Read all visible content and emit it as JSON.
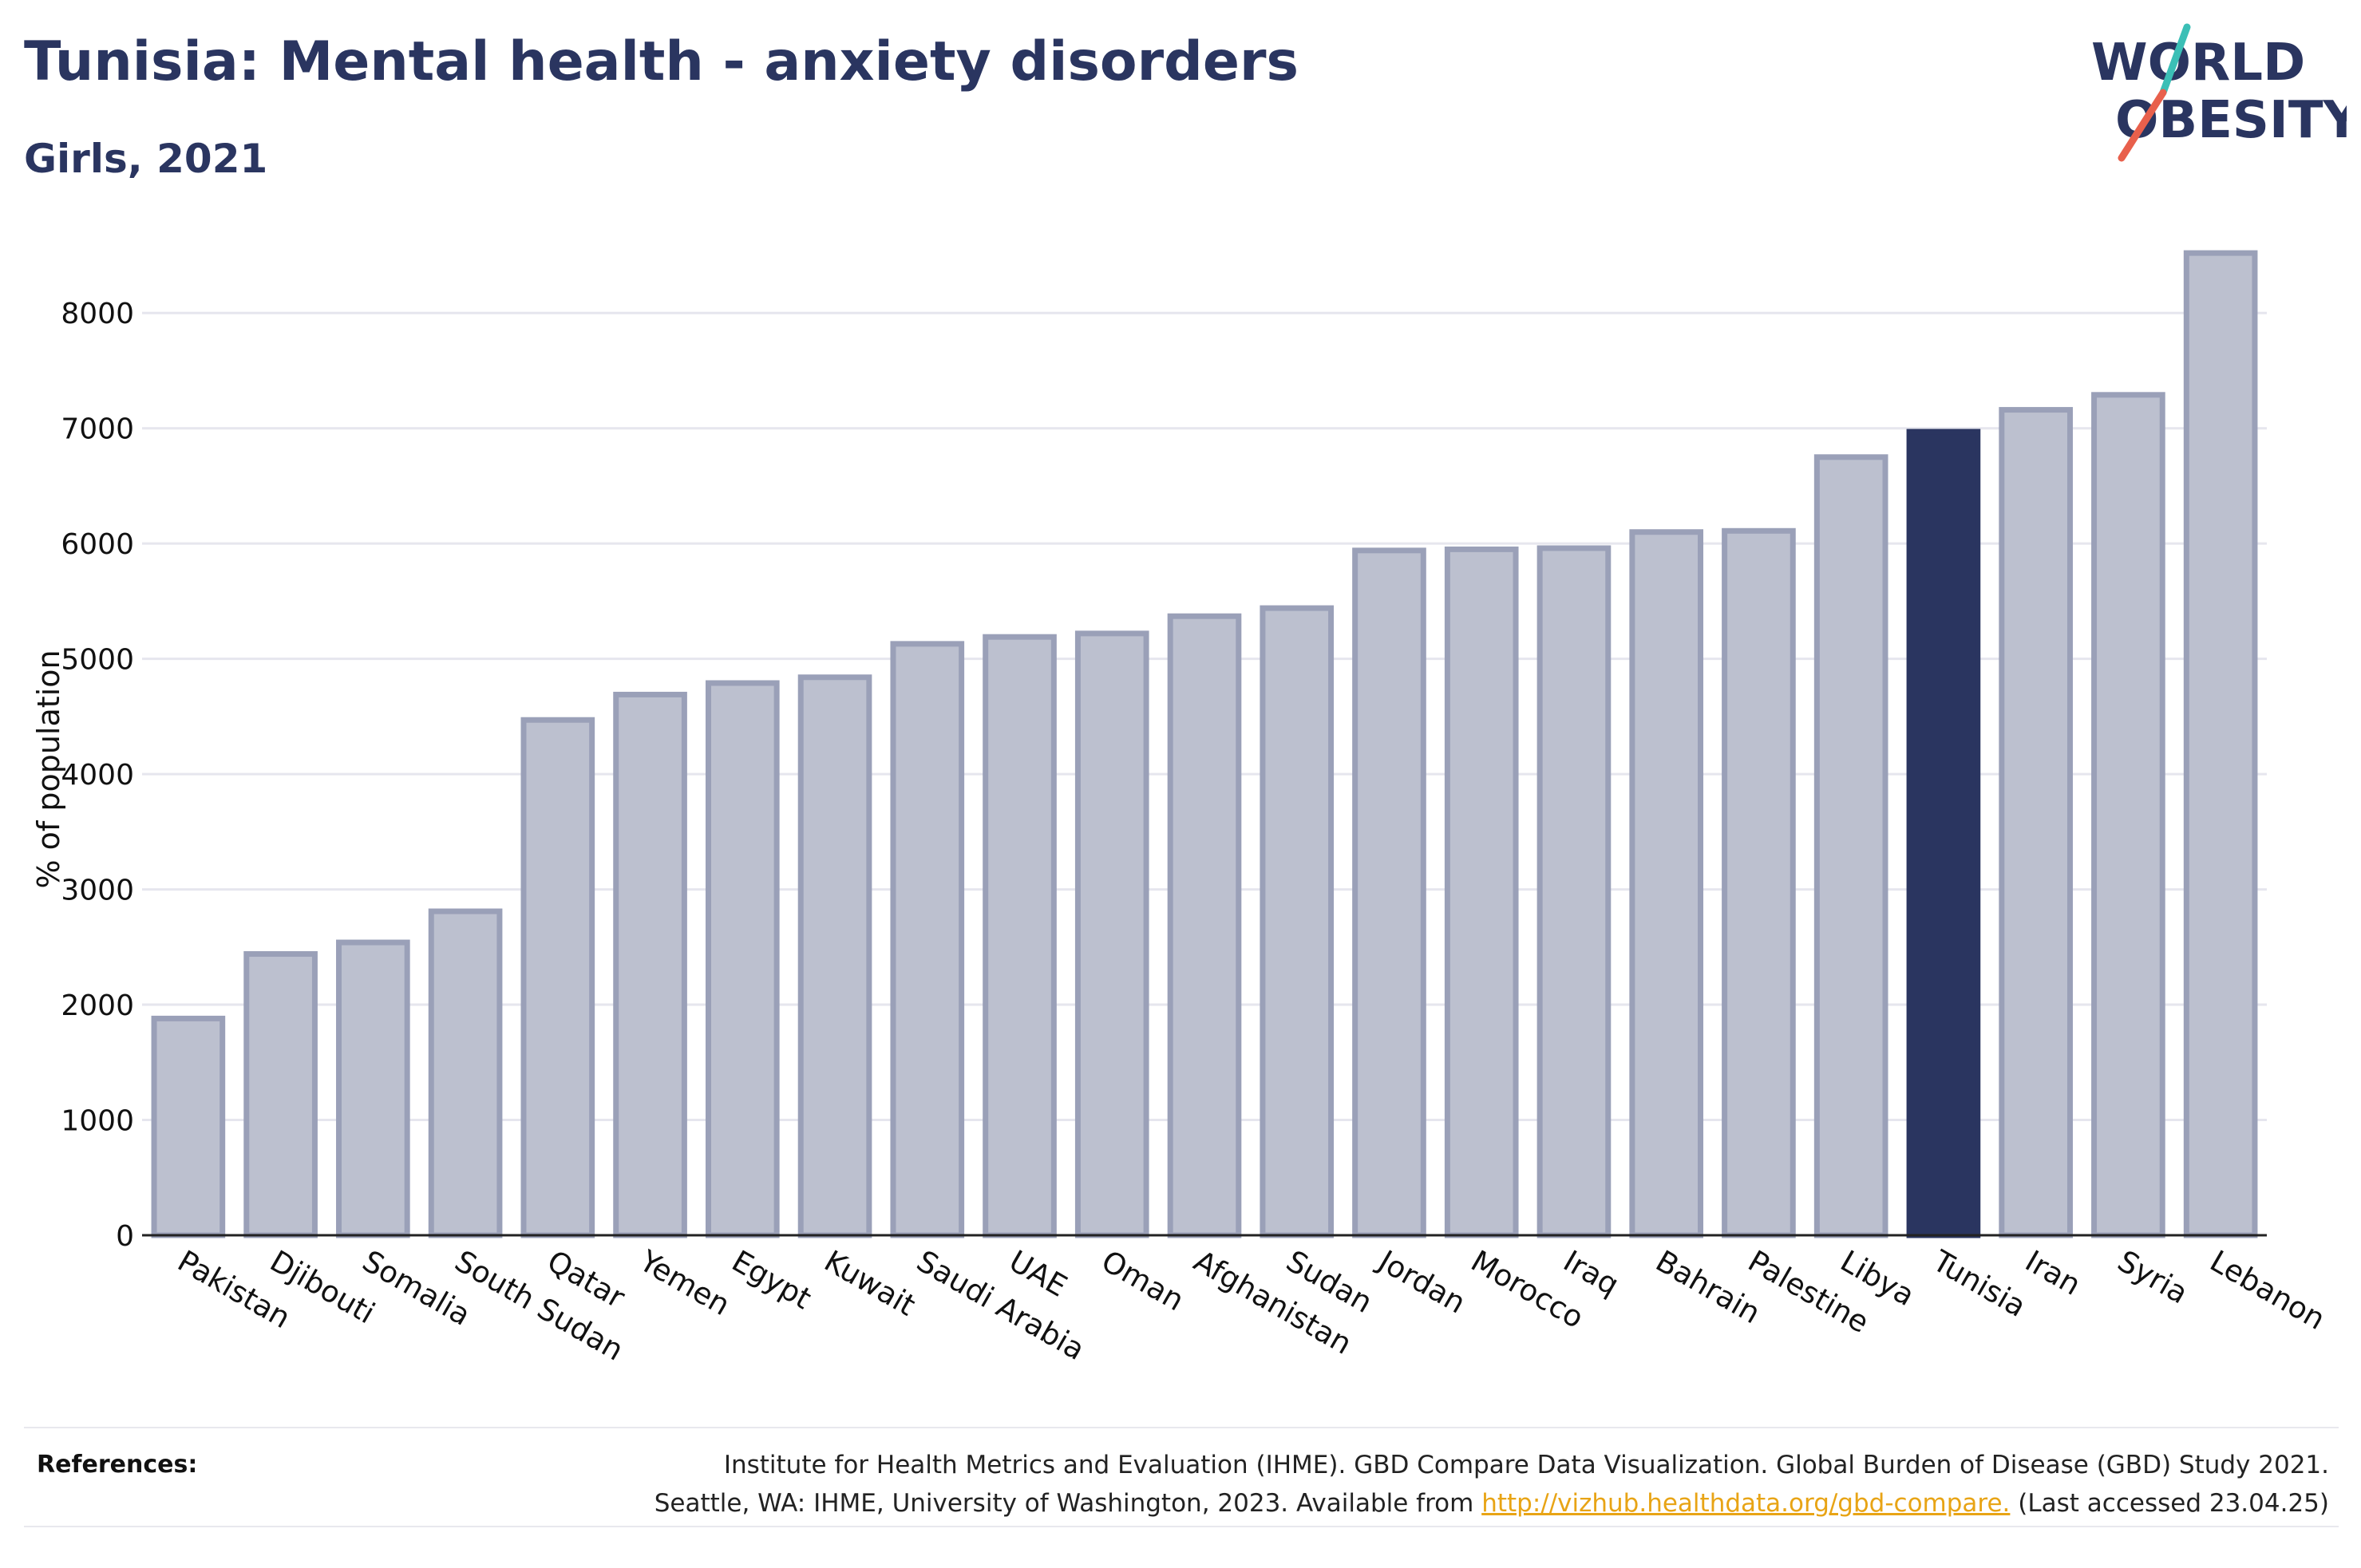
{
  "header": {
    "title": "Tunisia: Mental health - anxiety disorders",
    "subtitle": "Girls, 2021"
  },
  "logo": {
    "line1": "WORLD",
    "line2": "OBESITY",
    "colors": {
      "text": "#2a3560",
      "slash_teal": "#3bbfb6",
      "slash_red": "#e8604c"
    }
  },
  "chart_data": {
    "type": "bar",
    "ylabel": "% of population",
    "ylim": [
      0,
      8500
    ],
    "yticks": [
      0,
      1000,
      2000,
      3000,
      4000,
      5000,
      6000,
      7000,
      8000
    ],
    "grid": true,
    "highlight": "Tunisia",
    "colors": {
      "bar": "#bcc0cf",
      "bar_edge": "#9aa0b8",
      "highlight": "#2a3560",
      "grid": "#e6e6ee"
    },
    "categories": [
      "Pakistan",
      "Djibouti",
      "Somalia",
      "South Sudan",
      "Qatar",
      "Yemen",
      "Egypt",
      "Kuwait",
      "Saudi Arabia",
      "UAE",
      "Oman",
      "Afghanistan",
      "Sudan",
      "Jordan",
      "Morocco",
      "Iraq",
      "Bahrain",
      "Palestine",
      "Libya",
      "Tunisia",
      "Iran",
      "Syria",
      "Lebanon"
    ],
    "values": [
      1880,
      2440,
      2540,
      2810,
      4470,
      4690,
      4790,
      4840,
      5130,
      5190,
      5220,
      5370,
      5440,
      5940,
      5950,
      5960,
      6100,
      6110,
      6750,
      6970,
      7160,
      7290,
      8520
    ]
  },
  "references": {
    "label": "References:",
    "line1": "Institute for Health Metrics and Evaluation (IHME). GBD Compare Data Visualization. Global Burden of Disease (GBD) Study 2021.",
    "line2_before": "Seattle, WA: IHME, University of Washington, 2023. Available from ",
    "link": "http://vizhub.healthdata.org/gbd-compare.",
    "line2_after": " (Last accessed 23.04.25)"
  }
}
